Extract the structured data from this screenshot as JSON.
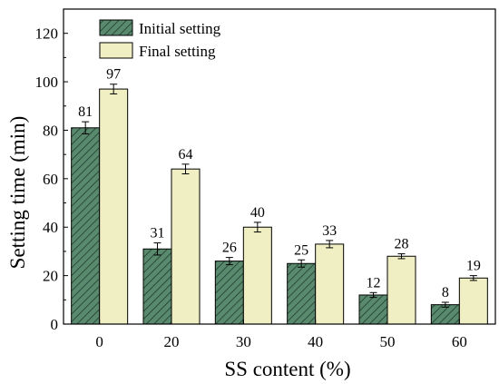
{
  "chart_data": {
    "type": "bar",
    "title": "",
    "xlabel": "SS content (%)",
    "ylabel": "Setting time (min)",
    "categories": [
      "0",
      "20",
      "30",
      "40",
      "50",
      "60"
    ],
    "ylim": [
      0,
      130
    ],
    "yticks": [
      0,
      20,
      40,
      60,
      80,
      100,
      120
    ],
    "grid": false,
    "legend_position": "top-left",
    "series": [
      {
        "name": "Initial setting",
        "values": [
          81,
          31,
          26,
          25,
          12,
          8
        ],
        "errors": [
          2.5,
          2.5,
          1.5,
          1.5,
          1.0,
          1.0
        ],
        "color": "#5a8a6e",
        "pattern": "diagonal-hatch"
      },
      {
        "name": "Final setting",
        "values": [
          97,
          64,
          40,
          33,
          28,
          19
        ],
        "errors": [
          2.0,
          2.0,
          2.0,
          1.5,
          1.0,
          1.0
        ],
        "color": "#f0efc4",
        "pattern": "solid"
      }
    ]
  }
}
